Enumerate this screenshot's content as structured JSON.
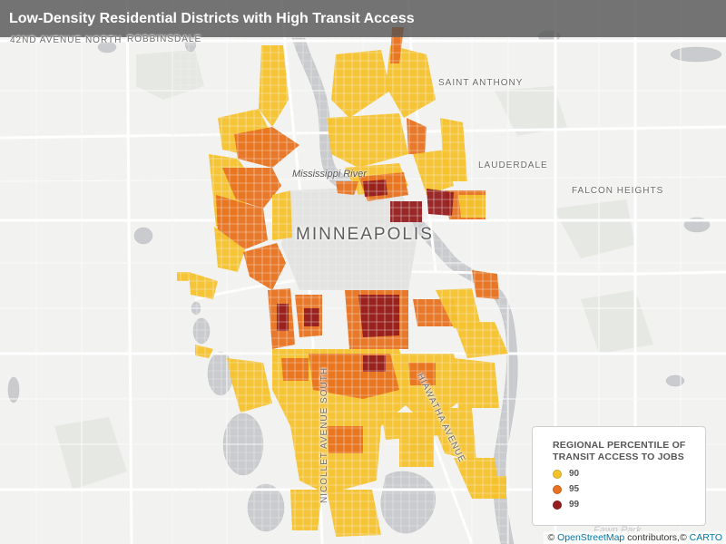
{
  "title": "Low-Density Residential Districts with High Transit Access",
  "places": {
    "north_ave": "42ND AVENUE NORTH",
    "robbinsdale": "ROBBINSDALE",
    "saint_anthony": "SAINT ANTHONY",
    "lauderdale": "LAUDERDALE",
    "falcon_heights": "FALCON HEIGHTS",
    "city": "MINNEAPOLIS",
    "river": "Mississippi River",
    "nicollet": "NICOLLET AVENUE SOUTH",
    "hiawatha": "HIAWATHA AVENUE",
    "minnehaha": "Fawn Park"
  },
  "legend": {
    "title": "REGIONAL PERCENTILE OF TRANSIT ACCESS TO JOBS",
    "items": [
      {
        "label": "90",
        "color": "#f5c22c"
      },
      {
        "label": "95",
        "color": "#e8721f"
      },
      {
        "label": "99",
        "color": "#951d1d"
      }
    ]
  },
  "attribution": {
    "prefix": "© ",
    "osm": "OpenStreetMap",
    "middle": " contributors,© ",
    "carto": "CARTO"
  },
  "colors": {
    "background": "#f2f2f0",
    "water": "#c9cbce",
    "park": "#e4e7e2",
    "road": "#ffffff",
    "p90": "#f5c22c",
    "p95": "#e8721f",
    "p99": "#951d1d"
  }
}
